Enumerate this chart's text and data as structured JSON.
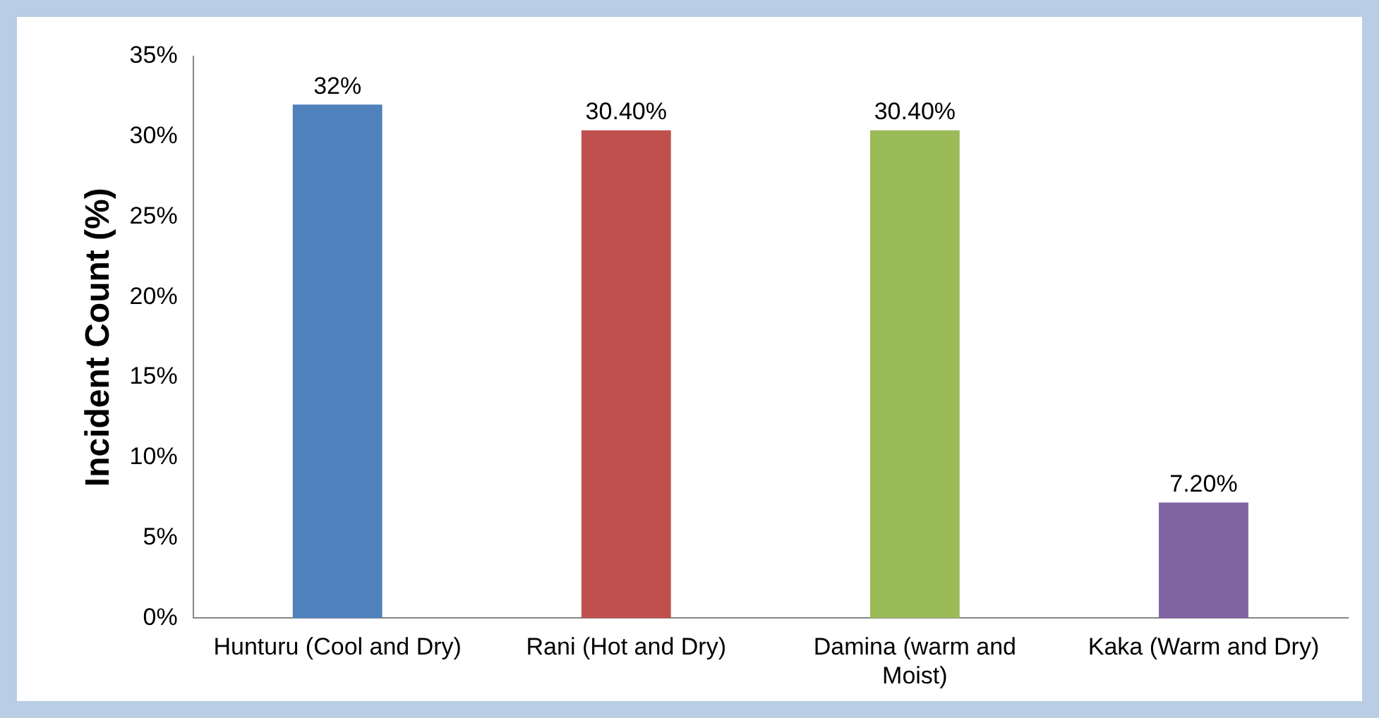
{
  "chart_data": {
    "type": "bar",
    "ylabel": "Incident Count (%)",
    "categories": [
      "Hunturu (Cool and Dry)",
      "Rani (Hot and Dry)",
      "Damina (warm and Moist)",
      "Kaka (Warm and Dry)"
    ],
    "values": [
      32,
      30.4,
      30.4,
      7.2
    ],
    "colors": [
      "#4f81bd",
      "#c0504d",
      "#9bbb59",
      "#8064a2"
    ],
    "value_labels": [
      "32%",
      "30.40%",
      "30.40%",
      "7.20%"
    ],
    "ylim": [
      0,
      35
    ],
    "yticks": [
      {
        "value": 0,
        "label": "0%"
      },
      {
        "value": 5,
        "label": "5%"
      },
      {
        "value": 10,
        "label": "10%"
      },
      {
        "value": 15,
        "label": "15%"
      },
      {
        "value": 20,
        "label": "20%"
      },
      {
        "value": 25,
        "label": "25%"
      },
      {
        "value": 30,
        "label": "30%"
      },
      {
        "value": 35,
        "label": "35%"
      }
    ],
    "grid": false,
    "legend": false
  }
}
